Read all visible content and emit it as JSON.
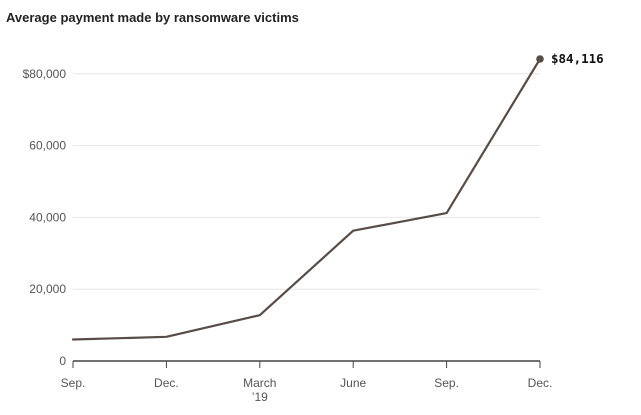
{
  "chart_data": {
    "type": "line",
    "title": "Average payment made by ransomware victims",
    "xlabel": "",
    "ylabel": "",
    "categories": [
      "Sep.",
      "Dec.",
      "March",
      "June",
      "Sep.",
      "Dec."
    ],
    "category_sublabels": [
      "",
      "",
      "’19",
      "",
      "",
      ""
    ],
    "series": [
      {
        "values": [
          5980,
          6733,
          12762,
          36295,
          41198,
          84116
        ]
      }
    ],
    "y_tick_labels": [
      "0",
      "20,000",
      "40,000",
      "60,000",
      "$80,000"
    ],
    "y_tick_values": [
      0,
      20000,
      40000,
      60000,
      80000
    ],
    "ylim": [
      0,
      84116
    ],
    "end_label": "$84,116",
    "grid": true,
    "legend": "none",
    "line_color": "#574d46",
    "grid_color": "#e6e6e6",
    "axis_color": "#444444"
  }
}
